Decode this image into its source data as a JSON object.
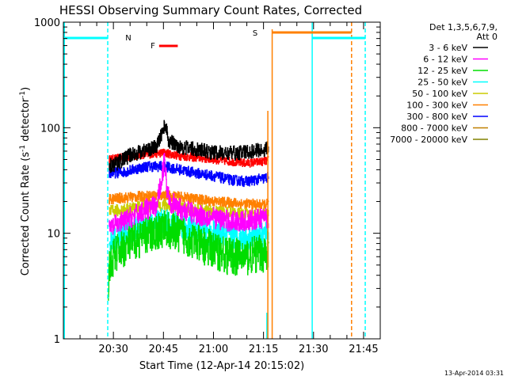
{
  "chart_data": {
    "type": "line",
    "title": "HESSI Observing Summary Count Rates, Corrected",
    "xlabel": "Start Time (12-Apr-14 20:15:02)",
    "ylabel_parts": [
      "Corrected Count Rate (s",
      "-1",
      " detector",
      "-1",
      ")"
    ],
    "yscale": "log",
    "ylim": [
      1,
      1000
    ],
    "xlim_minutes_after_2015": [
      0,
      95
    ],
    "x_ticks": [
      {
        "label": "20:30",
        "min": 15
      },
      {
        "label": "20:45",
        "min": 30
      },
      {
        "label": "21:00",
        "min": 45
      },
      {
        "label": "21:15",
        "min": 60
      },
      {
        "label": "21:30",
        "min": 75
      },
      {
        "label": "21:45",
        "min": 90
      }
    ],
    "y_ticks": [
      {
        "label": "1",
        "value": 1
      },
      {
        "label": "10",
        "value": 10
      },
      {
        "label": "100",
        "value": 100
      },
      {
        "label": "1000",
        "value": 1000
      }
    ],
    "legend": {
      "placement": "right",
      "header": [
        "Det 1,3,5,6,7,9,",
        "Att 0"
      ],
      "entries": [
        {
          "label": "3 - 6 keV",
          "color": "#000000"
        },
        {
          "label": "6 - 12 keV",
          "color": "#ff00ff"
        },
        {
          "label": "12 - 25 keV",
          "color": "#00dd00"
        },
        {
          "label": "25 - 50 keV",
          "color": "#00ffff"
        },
        {
          "label": "50 - 100 keV",
          "color": "#cccc00"
        },
        {
          "label": "100 - 300 keV",
          "color": "#ff8000"
        },
        {
          "label": "300 - 800 keV",
          "color": "#0000ff"
        },
        {
          "label": "800 - 7000 keV",
          "color": "#c08000"
        },
        {
          "label": "7000 - 20000 keV",
          "color": "#808000"
        }
      ]
    },
    "series": [
      {
        "name": "3 - 6 keV",
        "color": "#000000",
        "noise": 0.07,
        "points": [
          [
            13.7,
            44
          ],
          [
            16,
            46
          ],
          [
            20,
            55
          ],
          [
            25,
            62
          ],
          [
            28,
            66
          ],
          [
            29.5,
            90
          ],
          [
            30.5,
            108
          ],
          [
            31.5,
            75
          ],
          [
            35,
            66
          ],
          [
            40,
            62
          ],
          [
            45,
            58
          ],
          [
            50,
            57
          ],
          [
            55,
            59
          ],
          [
            60,
            62
          ],
          [
            61.5,
            64
          ]
        ]
      },
      {
        "name": "6 - 12 keV",
        "color": "#ff00ff",
        "noise": 0.1,
        "points": [
          [
            13.7,
            11
          ],
          [
            16,
            12
          ],
          [
            20,
            14
          ],
          [
            25,
            17
          ],
          [
            28,
            18
          ],
          [
            29.5,
            35
          ],
          [
            30.3,
            50
          ],
          [
            31,
            28
          ],
          [
            32,
            20
          ],
          [
            35,
            17
          ],
          [
            40,
            15
          ],
          [
            45,
            14
          ],
          [
            50,
            13
          ],
          [
            55,
            13
          ],
          [
            60,
            14
          ],
          [
            61.5,
            14
          ]
        ]
      },
      {
        "name": "12 - 25 keV",
        "color": "#00dd00",
        "noise": 0.18,
        "points": [
          [
            13.4,
            2
          ],
          [
            13.7,
            5
          ],
          [
            16,
            6.5
          ],
          [
            20,
            8
          ],
          [
            25,
            9.5
          ],
          [
            30,
            11
          ],
          [
            35,
            10
          ],
          [
            40,
            8
          ],
          [
            45,
            7
          ],
          [
            50,
            6
          ],
          [
            55,
            6
          ],
          [
            60,
            6.5
          ],
          [
            61.5,
            7
          ]
        ]
      },
      {
        "name": "25 - 50 keV",
        "color": "#00ffff",
        "noise": 0.12,
        "points": [
          [
            13.7,
            8
          ],
          [
            16,
            9
          ],
          [
            20,
            10.5
          ],
          [
            25,
            12
          ],
          [
            30,
            13
          ],
          [
            35,
            12
          ],
          [
            40,
            10.5
          ],
          [
            45,
            10
          ],
          [
            50,
            9.5
          ],
          [
            55,
            9
          ],
          [
            60,
            9.5
          ],
          [
            61.5,
            10
          ]
        ]
      },
      {
        "name": "50 - 100 keV",
        "color": "#cccc00",
        "noise": 0.06,
        "points": [
          [
            13.7,
            16
          ],
          [
            20,
            17
          ],
          [
            25,
            18
          ],
          [
            30,
            18.5
          ],
          [
            35,
            17.5
          ],
          [
            40,
            16.5
          ],
          [
            45,
            16
          ],
          [
            50,
            15.5
          ],
          [
            55,
            15
          ],
          [
            60,
            15
          ],
          [
            61.5,
            15.5
          ]
        ]
      },
      {
        "name": "100 - 300 keV",
        "color": "#ff8000",
        "noise": 0.05,
        "points": [
          [
            13.7,
            21
          ],
          [
            20,
            22
          ],
          [
            25,
            22.5
          ],
          [
            30,
            23
          ],
          [
            35,
            22
          ],
          [
            40,
            21
          ],
          [
            45,
            20
          ],
          [
            50,
            19.5
          ],
          [
            55,
            19
          ],
          [
            60,
            18.5
          ],
          [
            61.5,
            19
          ]
        ]
      },
      {
        "name": "300 - 800 keV",
        "color": "#0000ff",
        "noise": 0.05,
        "points": [
          [
            13.7,
            37
          ],
          [
            18,
            38
          ],
          [
            22,
            41
          ],
          [
            25,
            43
          ],
          [
            30,
            43
          ],
          [
            35,
            40
          ],
          [
            40,
            37
          ],
          [
            45,
            35
          ],
          [
            50,
            32
          ],
          [
            55,
            31
          ],
          [
            60,
            33
          ],
          [
            61.5,
            34
          ]
        ]
      },
      {
        "name": "red",
        "color": "#ff0000",
        "noise": 0.04,
        "points": [
          [
            13.7,
            50
          ],
          [
            15.5,
            51
          ],
          [
            18,
            52
          ],
          [
            22,
            55
          ],
          [
            25,
            56
          ],
          [
            30,
            58
          ],
          [
            35,
            54
          ],
          [
            40,
            52
          ],
          [
            45,
            50
          ],
          [
            50,
            48
          ],
          [
            55,
            46
          ],
          [
            60,
            48
          ],
          [
            61.5,
            49
          ]
        ]
      }
    ],
    "attenuator_markers": [
      {
        "label": "N",
        "color": "#00ffff"
      },
      {
        "label": "F",
        "color": "#ff0000"
      },
      {
        "label": "S",
        "color": "#ff8000"
      }
    ],
    "timestamp": "13-Apr-2014 03:31"
  }
}
